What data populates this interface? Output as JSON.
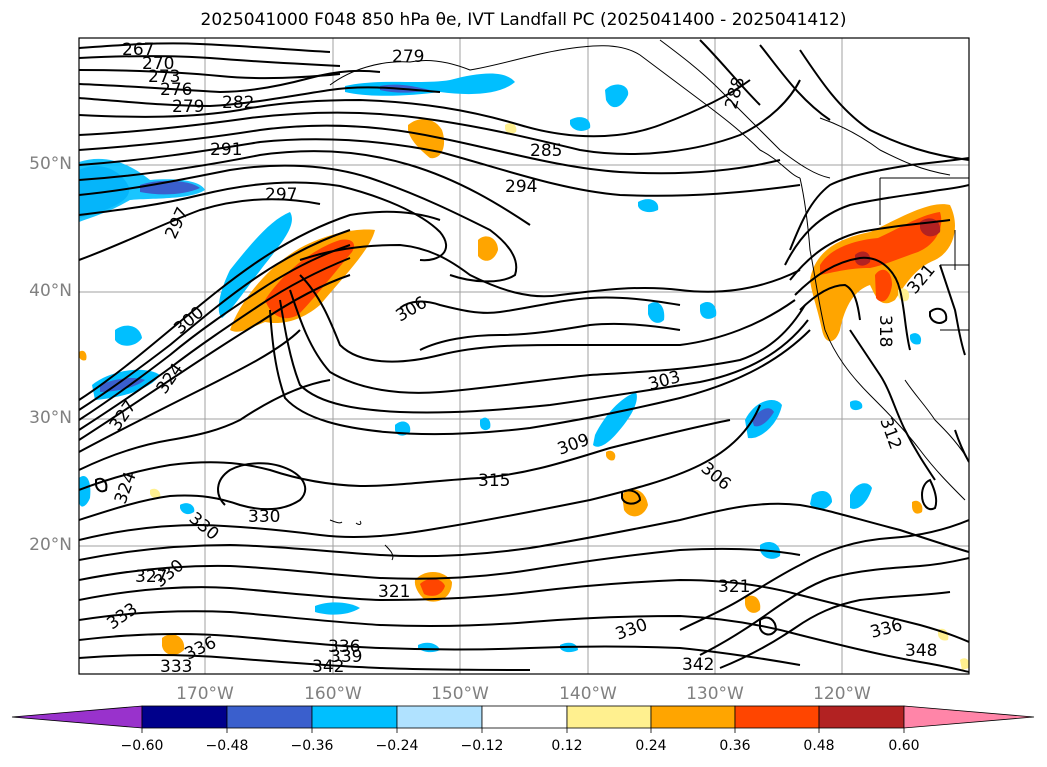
{
  "title": "2025041000 F048 850 hPa θe, IVT Landfall PC (2025041400 - 2025041412)",
  "map": {
    "latitude_labels": [
      "50°N",
      "40°N",
      "30°N",
      "20°N"
    ],
    "longitude_labels": [
      "170°W",
      "160°W",
      "150°W",
      "140°W",
      "130°W",
      "120°W"
    ],
    "contour_labels": [
      "267",
      "270",
      "273",
      "276",
      "279",
      "282",
      "279",
      "285",
      "288",
      "291",
      "294",
      "297",
      "297",
      "300",
      "303",
      "306",
      "306",
      "309",
      "312",
      "315",
      "318",
      "321",
      "321",
      "321",
      "324",
      "324",
      "327",
      "327",
      "330",
      "330",
      "330",
      "330",
      "333",
      "333",
      "336",
      "336",
      "336",
      "339",
      "342",
      "342",
      "348"
    ]
  },
  "colorbar": {
    "ticks": [
      "−0.60",
      "−0.48",
      "−0.36",
      "−0.24",
      "−0.12",
      "0.12",
      "0.24",
      "0.36",
      "0.48",
      "0.60"
    ],
    "colors": [
      "#9932cc",
      "#00008b",
      "#3a5fcd",
      "#00bfff",
      "#b0e2ff",
      "#ffffff",
      "#fff08f",
      "#ffa500",
      "#ff4500",
      "#b22222",
      "#ff85a8"
    ]
  }
}
